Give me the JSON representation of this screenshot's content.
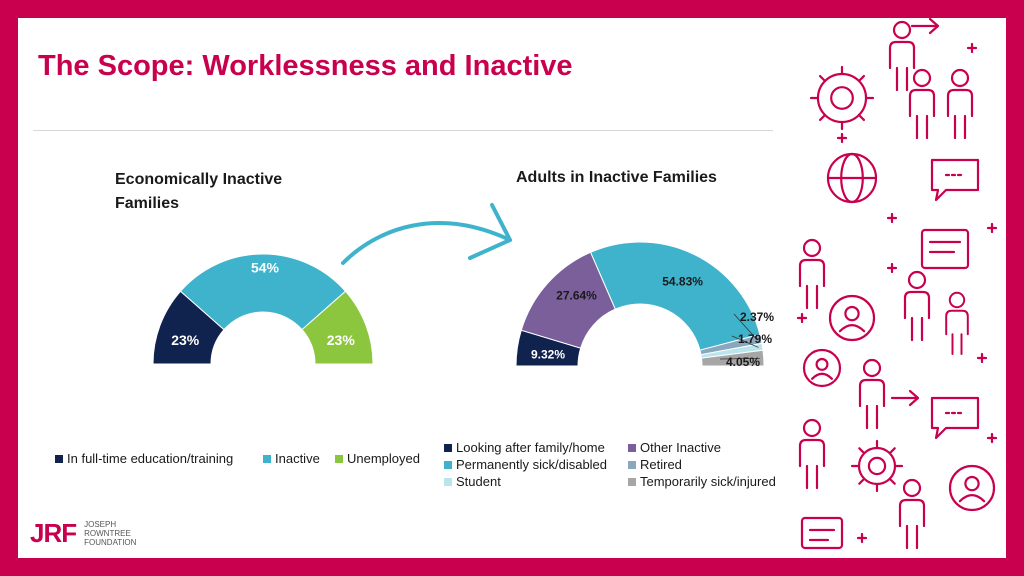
{
  "slide": {
    "title": "The Scope: Worklessness and Inactive"
  },
  "chart_data": [
    {
      "type": "pie",
      "subtype": "half-donut",
      "title": "Economically Inactive Families",
      "categories": [
        "In full-time education/training",
        "Inactive",
        "Unemployed"
      ],
      "values": [
        23,
        54,
        23
      ],
      "labels": [
        "23%",
        "54%",
        "23%"
      ],
      "colors": [
        "#10224e",
        "#3fb3cb",
        "#8cc63f"
      ],
      "legend_position": "bottom"
    },
    {
      "type": "pie",
      "subtype": "half-donut",
      "title": "Adults in Inactive Families",
      "categories": [
        "Looking after family/home",
        "Other Inactive",
        "Permanently sick/disabled",
        "Retired",
        "Student",
        "Temporarily sick/injured"
      ],
      "values": [
        9.32,
        27.64,
        54.83,
        2.37,
        1.79,
        4.05
      ],
      "labels": [
        "9.32%",
        "27.64%",
        "54.83%",
        "2.37%",
        "1.79%",
        "4.05%"
      ],
      "colors": [
        "#10224e",
        "#7b5f9b",
        "#3fb3cb",
        "#89a8bd",
        "#b8e6ec",
        "#a6a6a6"
      ],
      "legend_position": "bottom"
    }
  ],
  "logo": {
    "mark": "JRF",
    "line1": "JOSEPH",
    "line2": "ROWNTREE",
    "line3": "FOUNDATION"
  }
}
